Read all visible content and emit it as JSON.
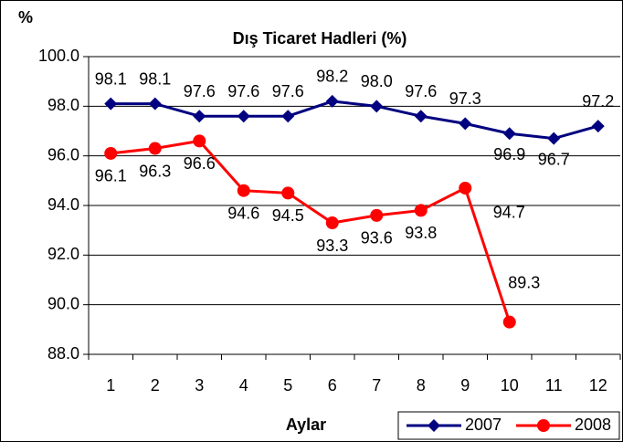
{
  "chart_data": {
    "type": "line",
    "title": "Dış Ticaret Hadleri (%)",
    "y_label": "%",
    "x_label": "Aylar",
    "categories": [
      "1",
      "2",
      "3",
      "4",
      "5",
      "6",
      "7",
      "8",
      "9",
      "10",
      "11",
      "12"
    ],
    "series": [
      {
        "name": "2007",
        "color": "#000080",
        "marker": "diamond",
        "values": [
          98.1,
          98.1,
          97.6,
          97.6,
          97.6,
          98.2,
          98.0,
          97.6,
          97.3,
          96.9,
          96.7,
          97.2
        ],
        "value_labels": [
          "98.1",
          "98.1",
          "97.6",
          "97.6",
          "97.6",
          "98.2",
          "98.0",
          "97.6",
          "97.3",
          "96.9",
          "96.7",
          "97.2"
        ]
      },
      {
        "name": "2008",
        "color": "#ff0000",
        "marker": "circle",
        "values": [
          96.1,
          96.3,
          96.6,
          94.6,
          94.5,
          93.3,
          93.6,
          93.8,
          94.7,
          89.3,
          null,
          null
        ],
        "value_labels": [
          "96.1",
          "96.3",
          "96.6",
          "94.6",
          "94.5",
          "93.3",
          "93.6",
          "93.8",
          "94.7",
          "89.3",
          null,
          null
        ]
      }
    ],
    "ylim": [
      88,
      100
    ],
    "yticks": [
      {
        "value": 88,
        "label": "88.0"
      },
      {
        "value": 90,
        "label": "90.0"
      },
      {
        "value": 92,
        "label": "92.0"
      },
      {
        "value": 94,
        "label": "94.0"
      },
      {
        "value": 96,
        "label": "96.0"
      },
      {
        "value": 98,
        "label": "98.0"
      },
      {
        "value": 100,
        "label": "100.0"
      }
    ],
    "grid": true,
    "legend": "bottom-right"
  }
}
